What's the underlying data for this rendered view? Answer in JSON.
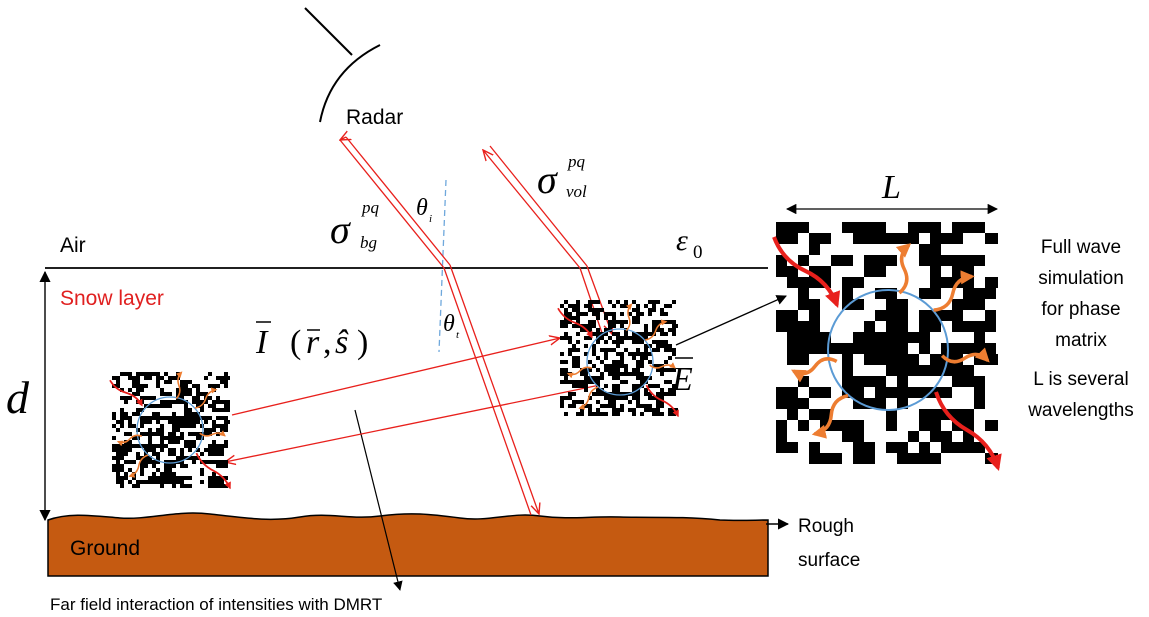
{
  "labels": {
    "radar": "Radar",
    "air": "Air",
    "snow_layer": "Snow layer",
    "ground": "Ground",
    "rough_surface_line1": "Rough",
    "rough_surface_line2": "surface",
    "far_field": "Far field interaction of intensities with DMRT",
    "full_wave": [
      "Full wave",
      "simulation",
      "for phase",
      "matrix",
      "L is several",
      "wavelengths"
    ]
  },
  "symbols": {
    "sigma": "σ",
    "bg": "bg",
    "vol": "vol",
    "pq": "pq",
    "theta": "θ",
    "i": "i",
    "t": "t",
    "epsilon": "ε",
    "zero": "0",
    "L": "L",
    "d": "d",
    "I": "I",
    "r": "r",
    "s": "ŝ",
    "E": "E",
    "intensity_args_open": "(",
    "intensity_args_sep": ",",
    "intensity_args_close": ")"
  },
  "colors": {
    "black": "#000000",
    "red": "#e8201c",
    "snow_label": "#e02020",
    "ground_fill": "#c55a11",
    "dashed_normal": "#6fa8dc",
    "particle_circle": "#5b9bd5",
    "orange_arrow": "#ed7d31"
  }
}
